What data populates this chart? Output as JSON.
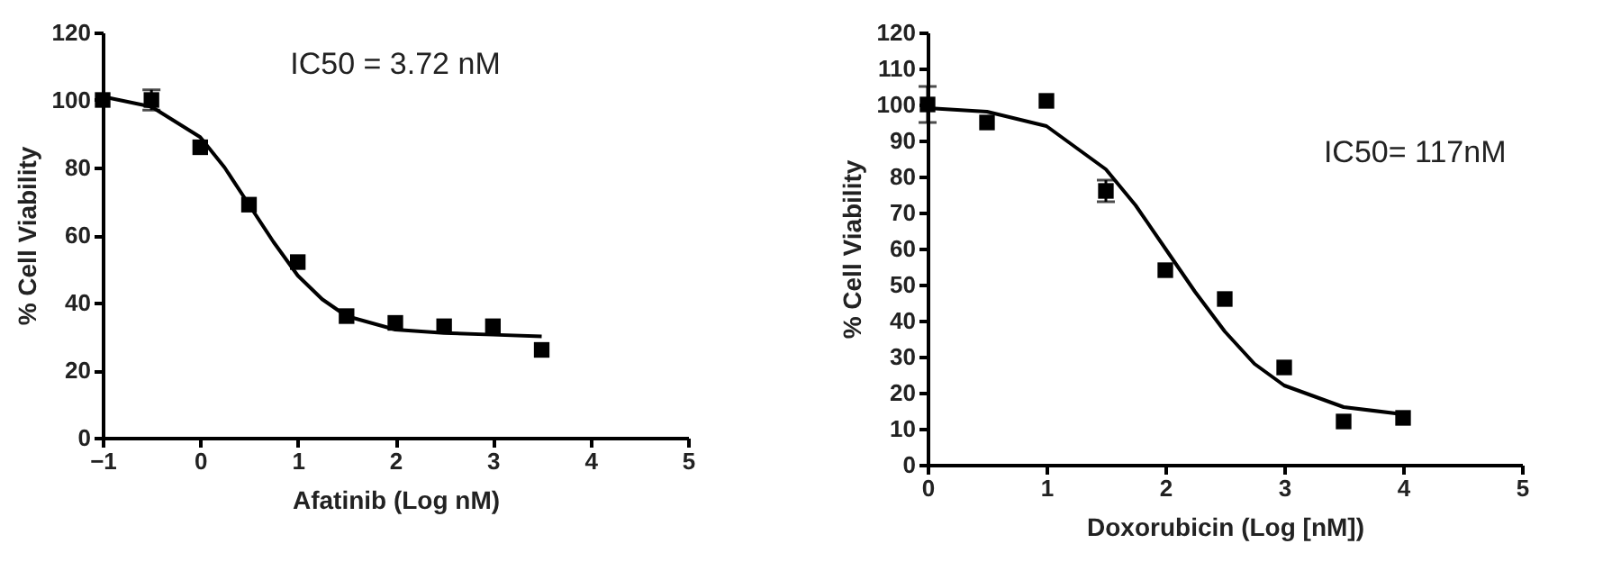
{
  "chart_data": [
    {
      "type": "scatter",
      "xlabel": "Afatinib (Log nM)",
      "ylabel": "% Cell Viability",
      "annotations": [
        "IC50 = 3.72 nM"
      ],
      "x": [
        -1,
        -0.5,
        0,
        0.5,
        1,
        1.5,
        2,
        2.5,
        3,
        3.5
      ],
      "grid": false,
      "xlim": [
        -1,
        5
      ],
      "xticks": [
        -1,
        0,
        1,
        2,
        3,
        4,
        5
      ],
      "ylim": [
        0,
        120
      ],
      "yticks": [
        0,
        20,
        40,
        60,
        80,
        100,
        120
      ],
      "series": [
        {
          "type": "scatter",
          "color": "#000000",
          "marker": "square",
          "values": [
            100,
            100,
            86,
            69,
            52,
            36,
            34,
            33,
            33,
            26
          ],
          "errors": [
            null,
            3,
            null,
            null,
            null,
            null,
            null,
            null,
            null,
            null
          ]
        },
        {
          "type": "line",
          "color": "#000000",
          "marker": "none",
          "x": [
            -1,
            -0.5,
            0,
            0.25,
            0.5,
            0.75,
            1,
            1.25,
            1.5,
            2,
            2.5,
            3,
            3.5
          ],
          "values": [
            101,
            98,
            89,
            80,
            69,
            58,
            48,
            41,
            36,
            32,
            31,
            30.5,
            30
          ]
        }
      ]
    },
    {
      "type": "scatter",
      "xlabel": "Doxorubicin (Log [nM])",
      "ylabel": "% Cell Viability",
      "annotations": [
        "IC50= 117nM"
      ],
      "x": [
        0,
        0.5,
        1,
        1.5,
        2,
        2.5,
        3,
        3.5,
        4
      ],
      "grid": false,
      "xlim": [
        0,
        5
      ],
      "xticks": [
        0,
        1,
        2,
        3,
        4,
        5
      ],
      "ylim": [
        0,
        120
      ],
      "yticks": [
        0,
        10,
        20,
        30,
        40,
        50,
        60,
        70,
        80,
        90,
        100,
        110,
        120
      ],
      "series": [
        {
          "type": "scatter",
          "color": "#000000",
          "marker": "square",
          "values": [
            100,
            95,
            101,
            76,
            54,
            46,
            27,
            12,
            13
          ],
          "errors": [
            5,
            null,
            null,
            3,
            null,
            null,
            null,
            null,
            null
          ]
        },
        {
          "type": "line",
          "color": "#000000",
          "marker": "none",
          "x": [
            0,
            0.5,
            1,
            1.5,
            1.75,
            2,
            2.25,
            2.5,
            2.75,
            3,
            3.5,
            4
          ],
          "values": [
            99,
            98,
            94,
            82,
            72,
            60,
            48,
            37,
            28,
            22,
            16,
            14
          ]
        }
      ]
    }
  ]
}
